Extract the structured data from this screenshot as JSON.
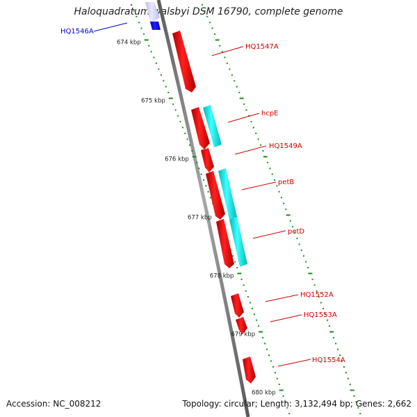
{
  "header": {
    "title": "Haloquadratum walsbyi DSM 16790, complete genome"
  },
  "footer": {
    "accession": "Accession: NC_008212",
    "topology": "Topology: circular; Length: 3,132,494 bp; Genes: 2,662"
  },
  "scale_labels": [
    "674 kbp",
    "675 kbp",
    "676 kbp",
    "677 kbp",
    "678 kbp",
    "679 kbp",
    "680 kbp"
  ],
  "genes": [
    {
      "label": "HQ1546A",
      "color": "#1010d8",
      "label_color": "#0000cc"
    },
    {
      "label": "HQ1547A",
      "color": "#ee0000",
      "label_color": "#cc0000"
    },
    {
      "label": "hcpE",
      "color": "#00e5e5",
      "label_color": "#cc0000"
    },
    {
      "label": "HQ1549A",
      "color": "#ee0000",
      "label_color": "#cc0000"
    },
    {
      "label": "petB",
      "color": "#00e5e5",
      "label_color": "#cc0000"
    },
    {
      "label": "petD",
      "color": "#00e5e5",
      "label_color": "#cc0000"
    },
    {
      "label": "HQ1552A",
      "color": "#ee0000",
      "label_color": "#cc0000"
    },
    {
      "label": "HQ1553A",
      "color": "#ee0000",
      "label_color": "#cc0000"
    },
    {
      "label": "HQ1554A",
      "color": "#ee0000",
      "label_color": "#cc0000"
    }
  ],
  "colors": {
    "backbone": "#808080",
    "tick": "#1a8a1a",
    "forward_gene": "#ee0000",
    "rna_gene": "#00e5e5",
    "selected_gene": "#1010d8"
  }
}
